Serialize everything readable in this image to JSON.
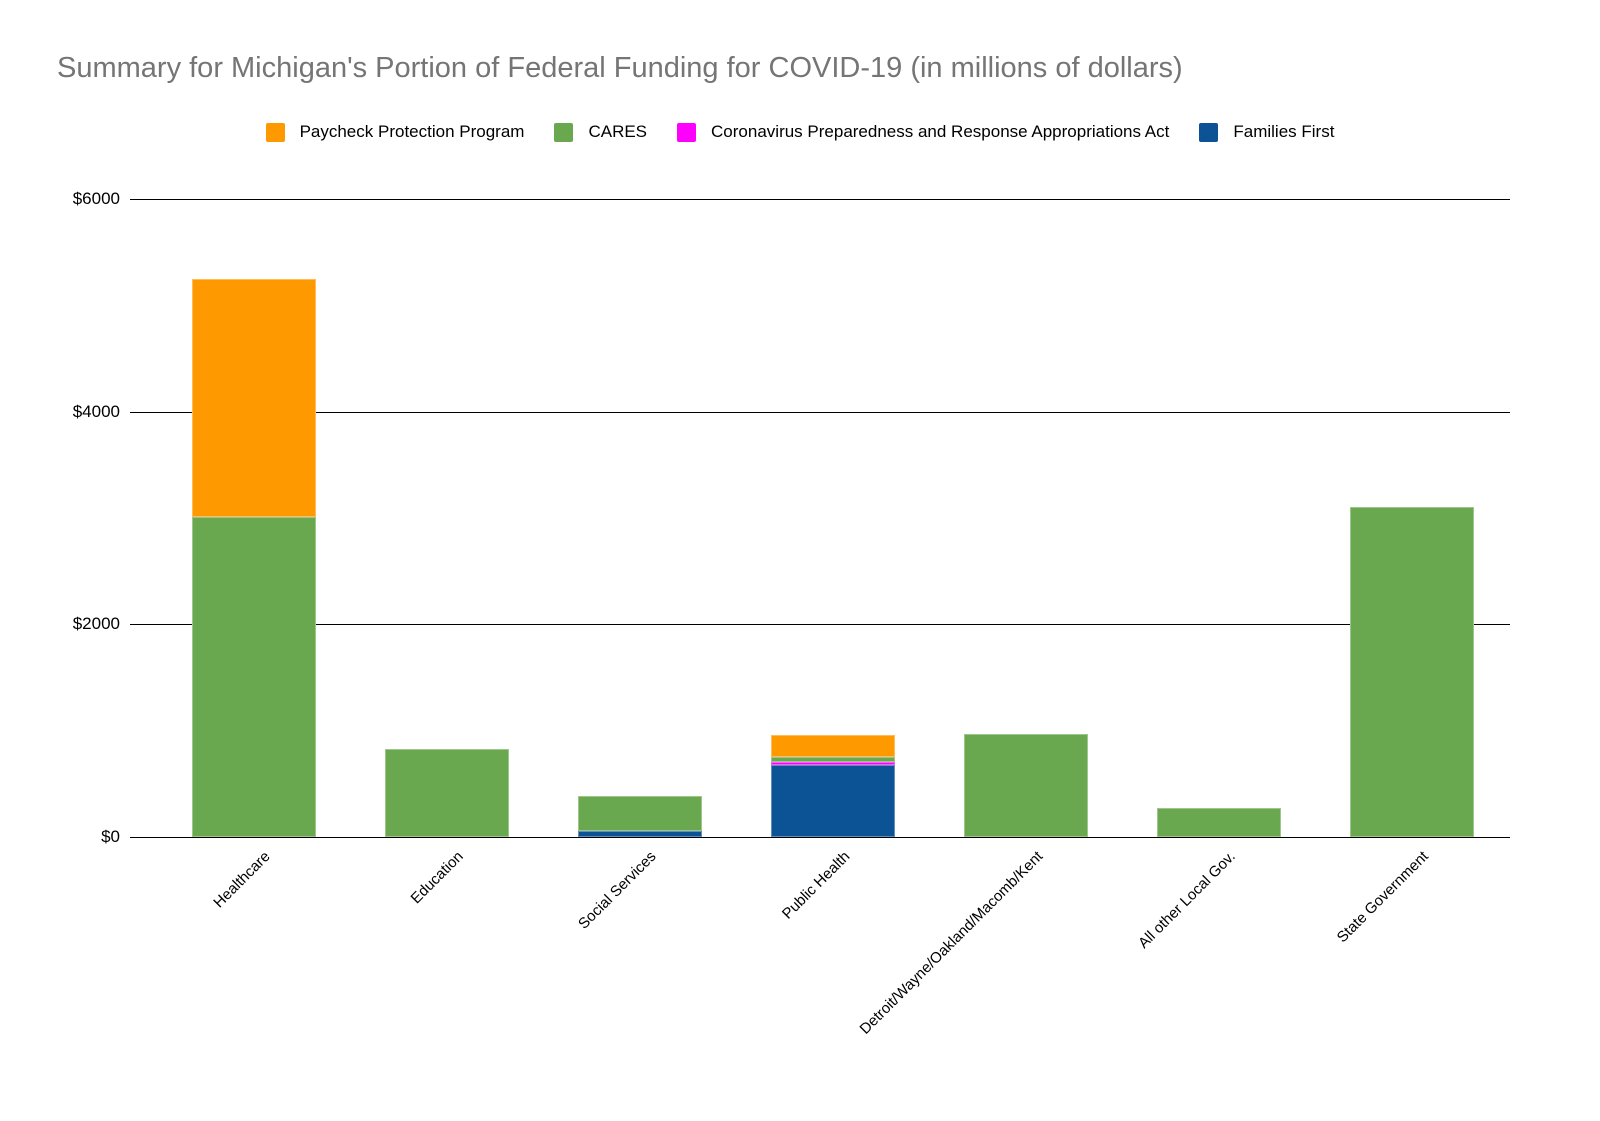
{
  "chart_data": {
    "type": "bar",
    "stacked": true,
    "title": "Summary for Michigan's Portion of Federal Funding for COVID-19 (in millions of dollars)",
    "units": "millions of dollars",
    "legend_position": "top",
    "grid": "horizontal",
    "ylim": [
      0,
      6000
    ],
    "yticks": [
      {
        "value": 0,
        "label": "$0"
      },
      {
        "value": 2000,
        "label": "$2000"
      },
      {
        "value": 4000,
        "label": "$4000"
      },
      {
        "value": 6000,
        "label": "$6000"
      }
    ],
    "categories": [
      "Healthcare",
      "Education",
      "Social Services",
      "Public Health",
      "Detroit/Wayne/Oakland/Macomb/Kent",
      "All other Local Gov.",
      "State Government"
    ],
    "series": [
      {
        "name": "Paycheck Protection Program",
        "color": "#ff9900",
        "values": [
          2240,
          0,
          0,
          210,
          0,
          0,
          0
        ]
      },
      {
        "name": "CARES",
        "color": "#6aa84f",
        "values": [
          3010,
          830,
          325,
          40,
          970,
          270,
          3100
        ]
      },
      {
        "name": "Coronavirus Preparedness and Response Appropriations Act",
        "color": "#ff00ff",
        "values": [
          0,
          0,
          0,
          30,
          0,
          0,
          0
        ]
      },
      {
        "name": "Families First",
        "color": "#0b5394",
        "values": [
          0,
          0,
          60,
          680,
          0,
          0,
          0
        ]
      }
    ],
    "stack_order_bottom_to_top": [
      "Families First",
      "Coronavirus Preparedness and Response Appropriations Act",
      "CARES",
      "Paycheck Protection Program"
    ],
    "colors": {
      "title_text": "#757575",
      "axis_text": "#000000",
      "gridline": "#000000",
      "background": "#ffffff"
    }
  }
}
